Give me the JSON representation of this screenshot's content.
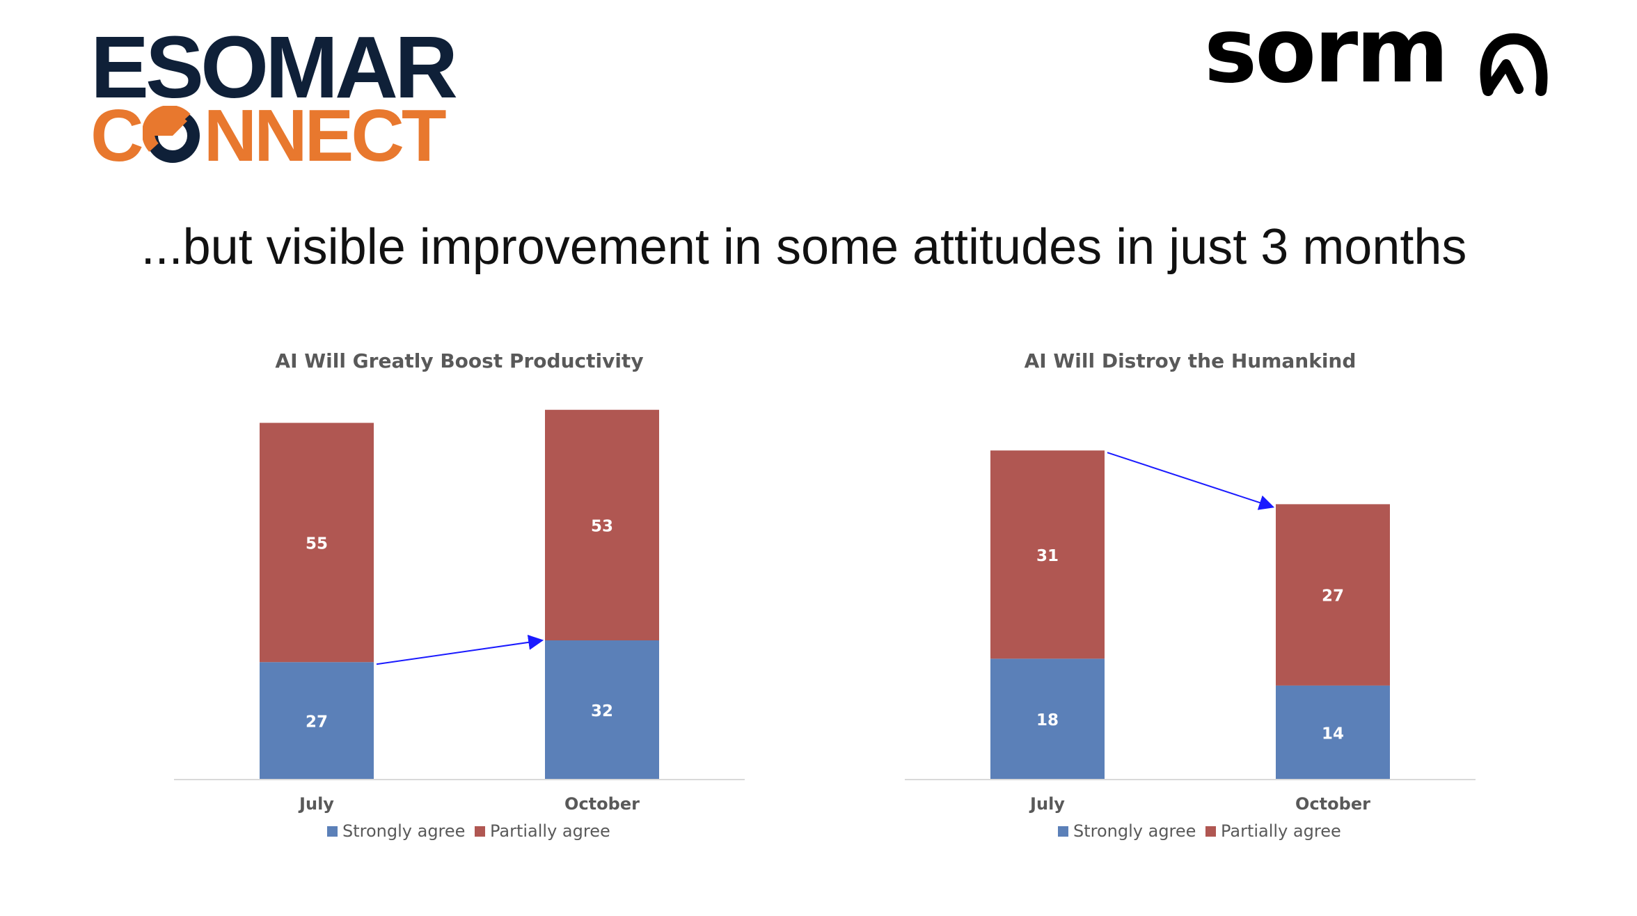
{
  "brand": {
    "esomar_top": "ESOMAR",
    "esomar_bottom_c": "C",
    "esomar_bottom_rest": "NNECT",
    "esomar_navy": "#0f2038",
    "esomar_orange": "#e8782e",
    "sorma_word": "sorm",
    "sorma_glyph_icon": "sorma-a-glyph-icon"
  },
  "slide_title": "...but visible improvement in some attitudes in just 3 months",
  "colors": {
    "strongly": "#5b80b8",
    "partially": "#b05752",
    "arrow": "#1a1aff",
    "axis": "#d9d9d9",
    "text": "#595959"
  },
  "chart_data": [
    {
      "type": "bar",
      "stacked": true,
      "title": "AI Will Greatly Boost Productivity",
      "categories": [
        "July",
        "October"
      ],
      "series": [
        {
          "name": "Strongly agree",
          "values": [
            27,
            32
          ]
        },
        {
          "name": "Partially agree",
          "values": [
            55,
            53
          ]
        }
      ],
      "ylim": [
        0,
        88
      ],
      "grid": false,
      "legend": "bottom",
      "annotation": "arrow from July Strongly agree top to October Strongly agree top"
    },
    {
      "type": "bar",
      "stacked": true,
      "title": "AI Will Distroy the Humankind",
      "categories": [
        "July",
        "October"
      ],
      "series": [
        {
          "name": "Strongly agree",
          "values": [
            18,
            14
          ]
        },
        {
          "name": "Partially agree",
          "values": [
            31,
            27
          ]
        }
      ],
      "ylim": [
        0,
        57
      ],
      "grid": false,
      "legend": "bottom",
      "annotation": "arrow from July total top to October total top"
    }
  ]
}
